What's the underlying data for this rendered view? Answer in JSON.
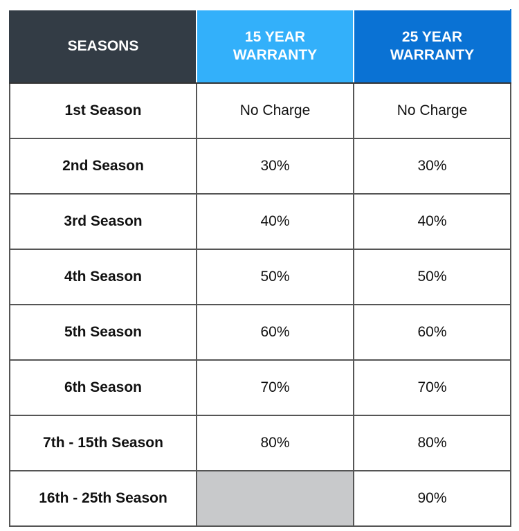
{
  "table": {
    "header": [
      "SEASONS",
      "15 YEAR\nWARRANTY",
      "25 YEAR\nWARRANTY"
    ],
    "rows": [
      [
        "1st Season",
        "No Charge",
        "No Charge"
      ],
      [
        "2nd Season",
        "30%",
        "30%"
      ],
      [
        "3rd Season",
        "40%",
        "40%"
      ],
      [
        "4th Season",
        "50%",
        "50%"
      ],
      [
        "5th Season",
        "60%",
        "60%"
      ],
      [
        "6th Season",
        "70%",
        "70%"
      ],
      [
        "7th - 15th Season",
        "80%",
        "80%"
      ],
      [
        "16th - 25th Season",
        null,
        "90%"
      ]
    ]
  }
}
